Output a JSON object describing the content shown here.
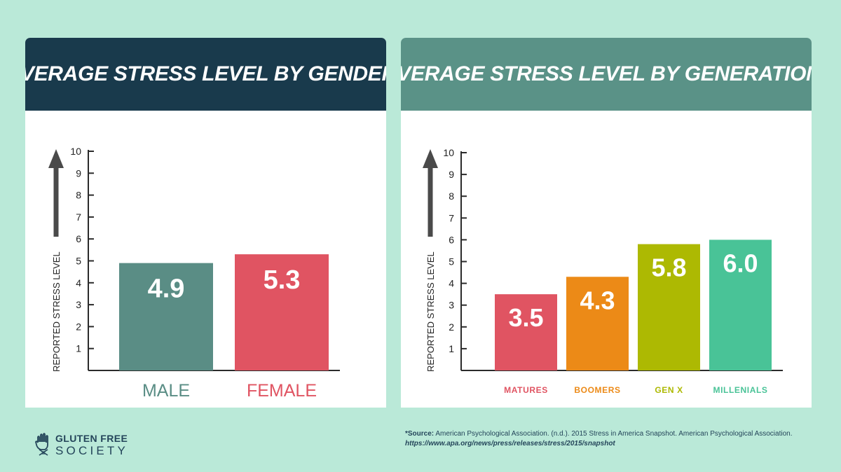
{
  "colors": {
    "background": "#bae9d8",
    "gender_header": "#193a4c",
    "generation_header": "#5a9287",
    "axis": "#2b2b2b",
    "arrow": "#4a4a4a",
    "bar_label": "#ffffff",
    "logo": "#24455a"
  },
  "chart_data": [
    {
      "type": "bar",
      "title": "AVERAGE STRESS LEVEL BY GENDER*",
      "ylabel": "REPORTED STRESS LEVEL",
      "ylim": [
        1,
        10
      ],
      "yticks": [
        "1",
        "2",
        "3",
        "4",
        "5",
        "6",
        "7",
        "8",
        "9",
        "10"
      ],
      "categories": [
        "MALE",
        "FEMALE"
      ],
      "values": [
        4.9,
        5.3
      ],
      "value_labels": [
        "4.9",
        "5.3"
      ],
      "bar_colors": [
        "#5a8d85",
        "#e05462"
      ],
      "category_colors": [
        "#5a8d85",
        "#e05462"
      ],
      "grid": false,
      "legend": "none"
    },
    {
      "type": "bar",
      "title": "AVERAGE STRESS LEVEL BY GENERATION*",
      "ylabel": "REPORTED STRESS LEVEL",
      "ylim": [
        1,
        10
      ],
      "yticks": [
        "1",
        "2",
        "3",
        "4",
        "5",
        "6",
        "7",
        "8",
        "9",
        "10"
      ],
      "categories": [
        "MATURES",
        "BOOMERS",
        "GEN X",
        "MILLENIALS"
      ],
      "values": [
        3.5,
        4.3,
        5.8,
        6.0
      ],
      "value_labels": [
        "3.5",
        "4.3",
        "5.8",
        "6.0"
      ],
      "bar_colors": [
        "#e05462",
        "#ec8a17",
        "#adb902",
        "#49c397"
      ],
      "category_colors": [
        "#e05462",
        "#ec8a17",
        "#adb902",
        "#49c397"
      ],
      "grid": false,
      "legend": "none"
    }
  ],
  "footer": {
    "logo_line1": "GLUTEN FREE",
    "logo_line2": "SOCIETY",
    "logo_icon": "hand-dna-icon",
    "source_prefix": "*Source:",
    "source_text": " American Psychological Association. (n.d.). 2015 Stress in America Snapshot. American Psychological Association.",
    "source_url": "https://www.apa.org/news/press/releases/stress/2015/snapshot"
  }
}
